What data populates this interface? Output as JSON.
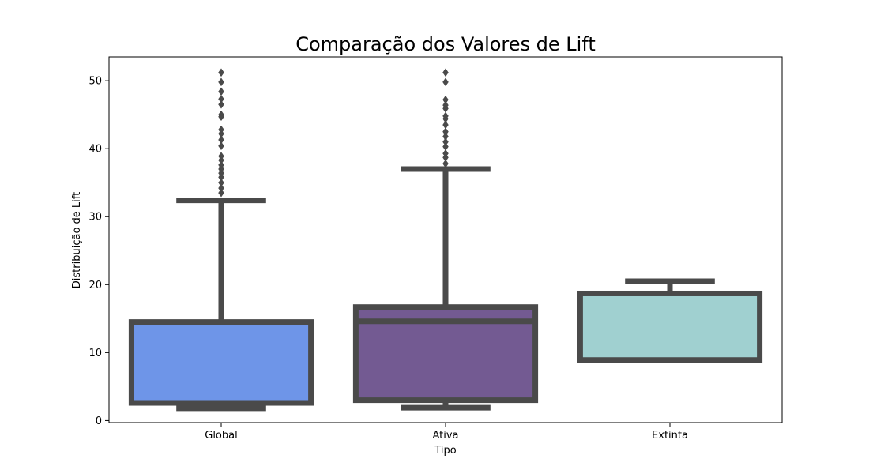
{
  "chart_data": {
    "type": "boxplot",
    "title": "Comparação dos Valores de Lift",
    "xlabel": "Tipo",
    "ylabel": "Distribuição de Lift",
    "ylim": [
      -0.3,
      53.5
    ],
    "yticks": [
      0,
      10,
      20,
      30,
      40,
      50
    ],
    "grid": false,
    "categories": [
      "Global",
      "Ativa",
      "Extinta"
    ],
    "series": [
      {
        "category": "Global",
        "color": "#6e95e8",
        "whisker_low": 1.8,
        "q1": 2.6,
        "median": 2.6,
        "q3": 14.5,
        "whisker_high": 32.4,
        "outliers": [
          33.5,
          34.2,
          35.0,
          35.8,
          36.4,
          37.0,
          37.6,
          38.3,
          38.9,
          40.4,
          41.3,
          42.2,
          42.8,
          44.7,
          45.0,
          46.5,
          47.3,
          48.4,
          49.8,
          51.2
        ]
      },
      {
        "category": "Ativa",
        "color": "#735a92",
        "whisker_low": 1.9,
        "q1": 3.0,
        "median": 14.6,
        "q3": 16.7,
        "whisker_high": 37.0,
        "outliers": [
          37.8,
          38.7,
          39.3,
          40.3,
          41.0,
          41.8,
          42.5,
          43.5,
          44.4,
          44.8,
          45.9,
          46.4,
          47.2,
          49.8,
          51.2
        ]
      },
      {
        "category": "Extinta",
        "color": "#a0d0d0",
        "whisker_low": 8.9,
        "q1": 8.9,
        "median": 8.9,
        "q3": 18.7,
        "whisker_high": 20.5,
        "outliers": []
      }
    ]
  }
}
